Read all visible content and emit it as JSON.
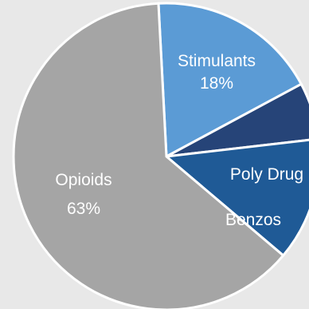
{
  "chart_data": {
    "type": "pie",
    "background": "#e8e8e8",
    "slices": [
      {
        "label": "Stimulants",
        "value": 18,
        "value_label": "18%",
        "color": "#5b9bd5"
      },
      {
        "label": "Poly Drug",
        "value": 6,
        "value_label": "",
        "color": "#264478"
      },
      {
        "label": "Benzos",
        "value": 13,
        "value_label": "",
        "color": "#1f5a96"
      },
      {
        "label": "Opioids",
        "value": 63,
        "value_label": "63%",
        "color": "#a5a5a5"
      }
    ]
  }
}
